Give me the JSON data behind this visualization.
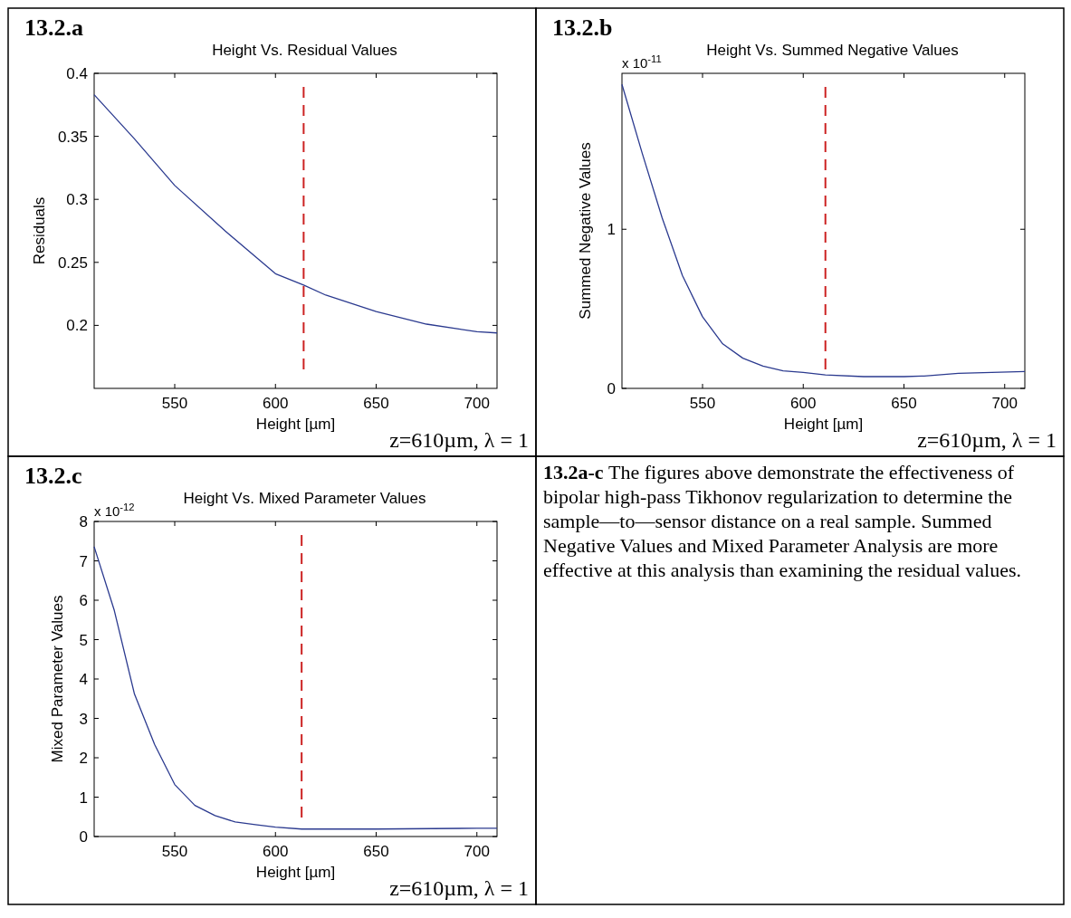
{
  "chart_data": [
    {
      "type": "line",
      "title": "Height Vs. Residual Values",
      "xlabel": "Height  [µm]",
      "ylabel": "Residuals",
      "annotations": [
        "13.2.a",
        "z=610µm, λ = 1"
      ],
      "xlim": [
        510,
        710
      ],
      "ylim": [
        0.15,
        0.4
      ],
      "xticks": [
        550,
        600,
        650,
        700
      ],
      "yticks": [
        0.2,
        0.25,
        0.3,
        0.35,
        0.4
      ],
      "series": [
        {
          "color": "#2b3a8f",
          "x": [
            510,
            530,
            550,
            575,
            600,
            614,
            625,
            650,
            675,
            700,
            710
          ],
          "values": [
            0.383,
            0.348,
            0.311,
            0.275,
            0.241,
            0.232,
            0.224,
            0.211,
            0.201,
            0.195,
            0.194
          ]
        }
      ],
      "ref_lines": [
        {
          "axis": "x",
          "value": 614,
          "color": "#cc2222",
          "line_style": "dashed"
        }
      ]
    },
    {
      "type": "line",
      "title": "Height Vs. Summed Negative Values",
      "xlabel": "Height  [µm]",
      "ylabel": "Summed Negative Values",
      "annotations": [
        "13.2.b",
        "x 10$^{-11}$",
        "z=610µm, λ = 1"
      ],
      "xlim": [
        510,
        710
      ],
      "ylim": [
        0,
        1.98
      ],
      "xticks": [
        550,
        600,
        650,
        700
      ],
      "yticks": [
        0,
        1
      ],
      "series": [
        {
          "color": "#2b3a8f",
          "x": [
            510,
            520,
            530,
            540,
            550,
            560,
            570,
            580,
            590,
            600,
            611,
            630,
            650,
            660,
            677,
            710
          ],
          "values": [
            1.91,
            1.48,
            1.07,
            0.71,
            0.45,
            0.28,
            0.19,
            0.14,
            0.11,
            0.1,
            0.085,
            0.074,
            0.074,
            0.078,
            0.095,
            0.106
          ]
        }
      ],
      "ref_lines": [
        {
          "axis": "x",
          "value": 611,
          "color": "#cc2222",
          "line_style": "dashed"
        }
      ]
    },
    {
      "type": "line",
      "title": "Height Vs. Mixed Parameter Values",
      "xlabel": "Height  [µm]",
      "ylabel": "Mixed Parameter Values",
      "annotations": [
        "13.2.c",
        "x 10$^{-12}$",
        "z=610µm, λ = 1"
      ],
      "xlim": [
        510,
        710
      ],
      "ylim": [
        0,
        8
      ],
      "xticks": [
        550,
        600,
        650,
        700
      ],
      "yticks": [
        0,
        1,
        2,
        3,
        4,
        5,
        6,
        7,
        8
      ],
      "series": [
        {
          "color": "#2b3a8f",
          "x": [
            510,
            520,
            530,
            540,
            550,
            560,
            570,
            580,
            590,
            600,
            613,
            650,
            700,
            710
          ],
          "values": [
            7.36,
            5.74,
            3.62,
            2.34,
            1.32,
            0.79,
            0.53,
            0.37,
            0.3,
            0.24,
            0.19,
            0.19,
            0.21,
            0.21
          ]
        }
      ],
      "ref_lines": [
        {
          "axis": "x",
          "value": 613,
          "color": "#cc2222",
          "line_style": "dashed"
        }
      ]
    },
    {
      "type": "other",
      "title": "13.2a-c",
      "annotations": [
        "The figures above demonstrate the effectiveness of bipolar high-pass Tikhonov regularization to determine the sample—to—sensor distance on a real sample.  Summed Negative Values and Mixed Parameter Analysis are more effective at this analysis than examining the residual values."
      ]
    }
  ]
}
